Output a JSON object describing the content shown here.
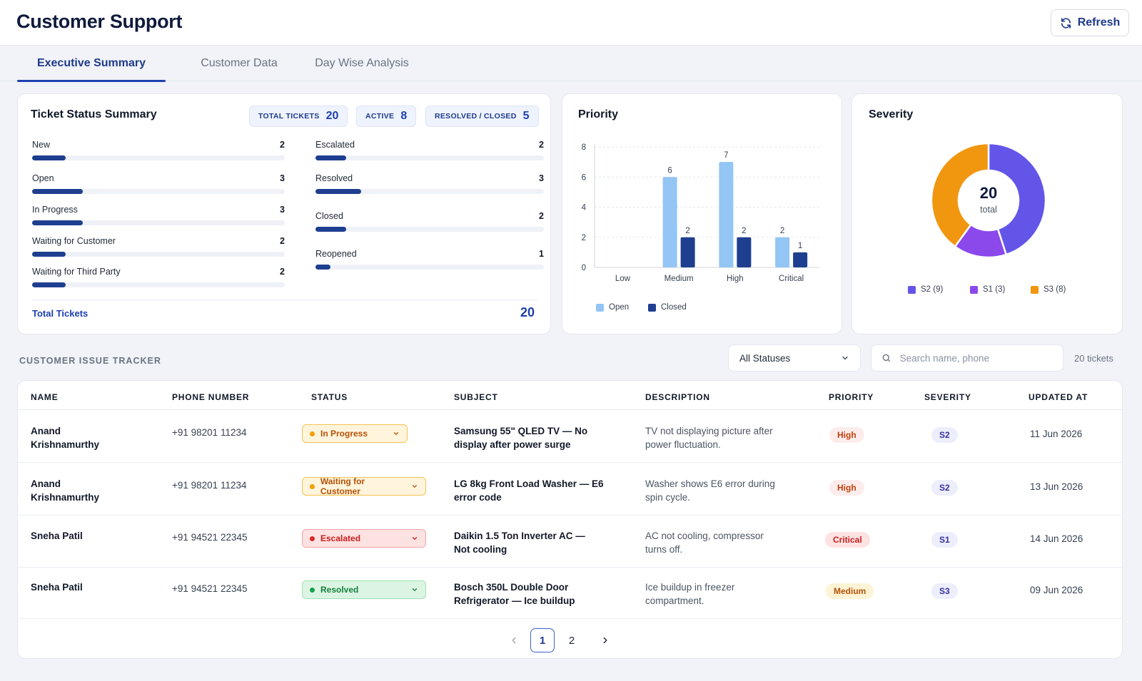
{
  "app": {
    "title": "Customer Support"
  },
  "header": {
    "refresh_label": "Refresh",
    "refresh_icon": "refresh-icon"
  },
  "tabs": [
    {
      "label": "Executive Summary",
      "active": true
    },
    {
      "label": "Customer Data",
      "active": false
    },
    {
      "label": "Day Wise Analysis",
      "active": false
    }
  ],
  "status_summary": {
    "title": "Ticket Status Summary",
    "pills": [
      {
        "label": "TOTAL TICKETS",
        "value": "20"
      },
      {
        "label": "ACTIVE",
        "value": "8"
      },
      {
        "label": "RESOLVED / CLOSED",
        "value": "5"
      }
    ],
    "left_items": [
      {
        "name": "New",
        "count": 2
      },
      {
        "name": "Open",
        "count": 3
      },
      {
        "name": "In Progress",
        "count": 3
      },
      {
        "name": "Waiting for Customer",
        "count": 2
      },
      {
        "name": "Waiting for Third Party",
        "count": 2
      }
    ],
    "right_items": [
      {
        "name": "Escalated",
        "count": 2
      },
      {
        "name": "Resolved",
        "count": 3
      },
      {
        "name": "Closed",
        "count": 2
      },
      {
        "name": "Reopened",
        "count": 1
      }
    ],
    "bar_max": 20,
    "total_label": "Total Tickets",
    "total_value": "20"
  },
  "chart_data": [
    {
      "type": "bar",
      "title": "Priority",
      "categories": [
        "Low",
        "Medium",
        "High",
        "Critical"
      ],
      "series": [
        {
          "name": "Open",
          "values": [
            0,
            6,
            7,
            2
          ],
          "color": "#93c5f5"
        },
        {
          "name": "Closed",
          "values": [
            0,
            2,
            2,
            1
          ],
          "color": "#1e3f8f"
        }
      ],
      "ylim": [
        0,
        8
      ],
      "yticks": [
        0,
        2,
        4,
        6,
        8
      ],
      "grid": true,
      "legend": "bottom-left"
    },
    {
      "type": "pie",
      "title": "Severity",
      "center_value": "20",
      "center_label": "total",
      "slices": [
        {
          "label": "S2 (9)",
          "value": 9,
          "color": "#6355e8"
        },
        {
          "label": "S1 (3)",
          "value": 3,
          "color": "#8b48ea"
        },
        {
          "label": "S3 (8)",
          "value": 8,
          "color": "#f1960f"
        }
      ],
      "legend": "bottom"
    }
  ],
  "tracker": {
    "section_label": "CUSTOMER ISSUE TRACKER",
    "status_filter": "All Statuses",
    "search_placeholder": "Search name, phone",
    "ticket_count": "20 tickets",
    "columns": [
      "NAME",
      "PHONE NUMBER",
      "STATUS",
      "SUBJECT",
      "DESCRIPTION",
      "PRIORITY",
      "SEVERITY",
      "UPDATED AT"
    ],
    "rows": [
      {
        "name": [
          "Anand",
          "Krishnamurthy"
        ],
        "phone": "+91 98201 11234",
        "status": "In Progress",
        "status_kind": "progress",
        "subject": [
          "Samsung 55\" QLED TV — No",
          "display after power surge"
        ],
        "description": [
          "TV not displaying picture after",
          "power fluctuation."
        ],
        "priority": "High",
        "severity": "S2",
        "updated": "11 Jun 2026"
      },
      {
        "name": [
          "Anand",
          "Krishnamurthy"
        ],
        "phone": "+91 98201 11234",
        "status": "Waiting for Customer",
        "status_kind": "waiting",
        "subject": [
          "LG 8kg Front Load Washer — E6",
          "error code"
        ],
        "description": [
          "Washer shows E6 error during",
          "spin cycle."
        ],
        "priority": "High",
        "severity": "S2",
        "updated": "13 Jun 2026"
      },
      {
        "name": [
          "Sneha Patil",
          ""
        ],
        "phone": "+91 94521 22345",
        "status": "Escalated",
        "status_kind": "escalated",
        "subject": [
          "Daikin 1.5 Ton Inverter AC —",
          "Not cooling"
        ],
        "description": [
          "AC not cooling, compressor",
          "turns off."
        ],
        "priority": "Critical",
        "severity": "S1",
        "updated": "14 Jun 2026"
      },
      {
        "name": [
          "Sneha Patil",
          ""
        ],
        "phone": "+91 94521 22345",
        "status": "Resolved",
        "status_kind": "resolved",
        "subject": [
          "Bosch 350L Double Door",
          "Refrigerator — Ice buildup"
        ],
        "description": [
          "Ice buildup in freezer",
          "compartment."
        ],
        "priority": "Medium",
        "severity": "S3",
        "updated": "09 Jun 2026"
      }
    ],
    "pagination": {
      "pages": [
        "1",
        "2"
      ],
      "current": "1",
      "prev_icon": "chevron-left-icon",
      "next_icon": "chevron-right-icon"
    }
  }
}
